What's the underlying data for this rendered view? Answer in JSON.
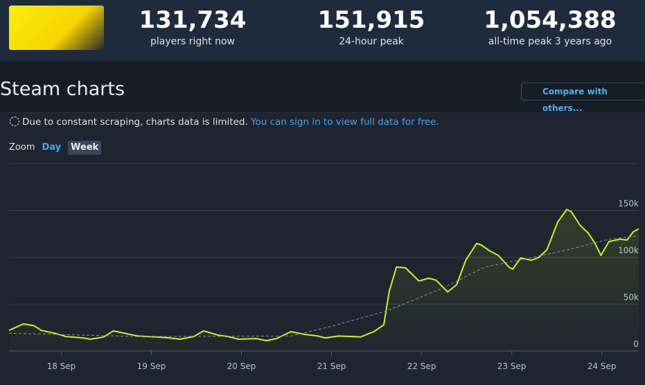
{
  "header": {
    "stats": [
      {
        "value": "131,734",
        "label": "players right now"
      },
      {
        "value": "151,915",
        "label": "24-hour peak"
      },
      {
        "value": "1,054,388",
        "label": "all-time peak 3 years ago"
      }
    ]
  },
  "section_title": "Steam charts",
  "compare_button": "Compare with others...",
  "notice": {
    "text": "Due to constant scraping, charts data is limited.",
    "link": "You can sign in to view full data for free."
  },
  "zoom": {
    "label": "Zoom",
    "options": [
      "Day",
      "Week"
    ]
  },
  "chart_data": {
    "type": "line",
    "series": [
      {
        "color": "#c9f51d",
        "style": "solid",
        "x": [
          17.42,
          17.58,
          17.7,
          17.78,
          17.93,
          18.05,
          18.24,
          18.32,
          18.47,
          18.58,
          18.7,
          18.85,
          19.05,
          19.2,
          19.32,
          19.47,
          19.58,
          19.74,
          19.85,
          19.97,
          20.16,
          20.28,
          20.39,
          20.55,
          20.7,
          20.85,
          20.93,
          21.08,
          21.24,
          21.32,
          21.47,
          21.58,
          21.64,
          21.72,
          21.82,
          21.97,
          22.08,
          22.16,
          22.29,
          22.39,
          22.49,
          22.61,
          22.66,
          22.76,
          22.85,
          22.97,
          23.01,
          23.1,
          23.22,
          23.3,
          23.39,
          23.51,
          23.61,
          23.66,
          23.76,
          23.85,
          23.92,
          23.99,
          24.08,
          24.2,
          24.28,
          24.35,
          24.41
        ],
        "values": [
          22000,
          29000,
          27000,
          22000,
          19000,
          15500,
          14000,
          12600,
          15000,
          21500,
          19000,
          16000,
          15000,
          14000,
          12600,
          15500,
          21500,
          17000,
          15500,
          12600,
          13300,
          11000,
          13300,
          20700,
          17800,
          16000,
          14000,
          16000,
          15500,
          15000,
          20700,
          28000,
          63700,
          89600,
          88900,
          74800,
          77800,
          75600,
          63000,
          71100,
          97000,
          114800,
          113300,
          106700,
          102200,
          89600,
          87400,
          99300,
          97000,
          100000,
          108100,
          137800,
          151100,
          148900,
          134100,
          125900,
          115600,
          102200,
          117000,
          119300,
          118500,
          127400,
          130400
        ]
      },
      {
        "color": "#8f98a0",
        "style": "dashed",
        "x": [
          17.42,
          18.85,
          20.55,
          21.01,
          21.62,
          22.24,
          22.7,
          23.16,
          23.62,
          24.08,
          24.41
        ],
        "values": [
          19000,
          15500,
          16000,
          26700,
          43000,
          67400,
          89600,
          98500,
          108100,
          119300,
          123000
        ]
      }
    ],
    "xlim": [
      17.42,
      24.41
    ],
    "xticks": [
      {
        "value": 18,
        "label": "18 Sep"
      },
      {
        "value": 19,
        "label": "19 Sep"
      },
      {
        "value": 20,
        "label": "20 Sep"
      },
      {
        "value": 21,
        "label": "21 Sep"
      },
      {
        "value": 22,
        "label": "22 Sep"
      },
      {
        "value": 23,
        "label": "23 Sep"
      },
      {
        "value": 24,
        "label": "24 Sep"
      }
    ],
    "ylim": [
      0,
      200000
    ],
    "yticks": [
      0,
      {
        "value": 50000,
        "label": "50k"
      },
      {
        "value": 100000,
        "label": "100k"
      },
      {
        "value": 150000,
        "label": "150k"
      }
    ],
    "grid": true
  }
}
